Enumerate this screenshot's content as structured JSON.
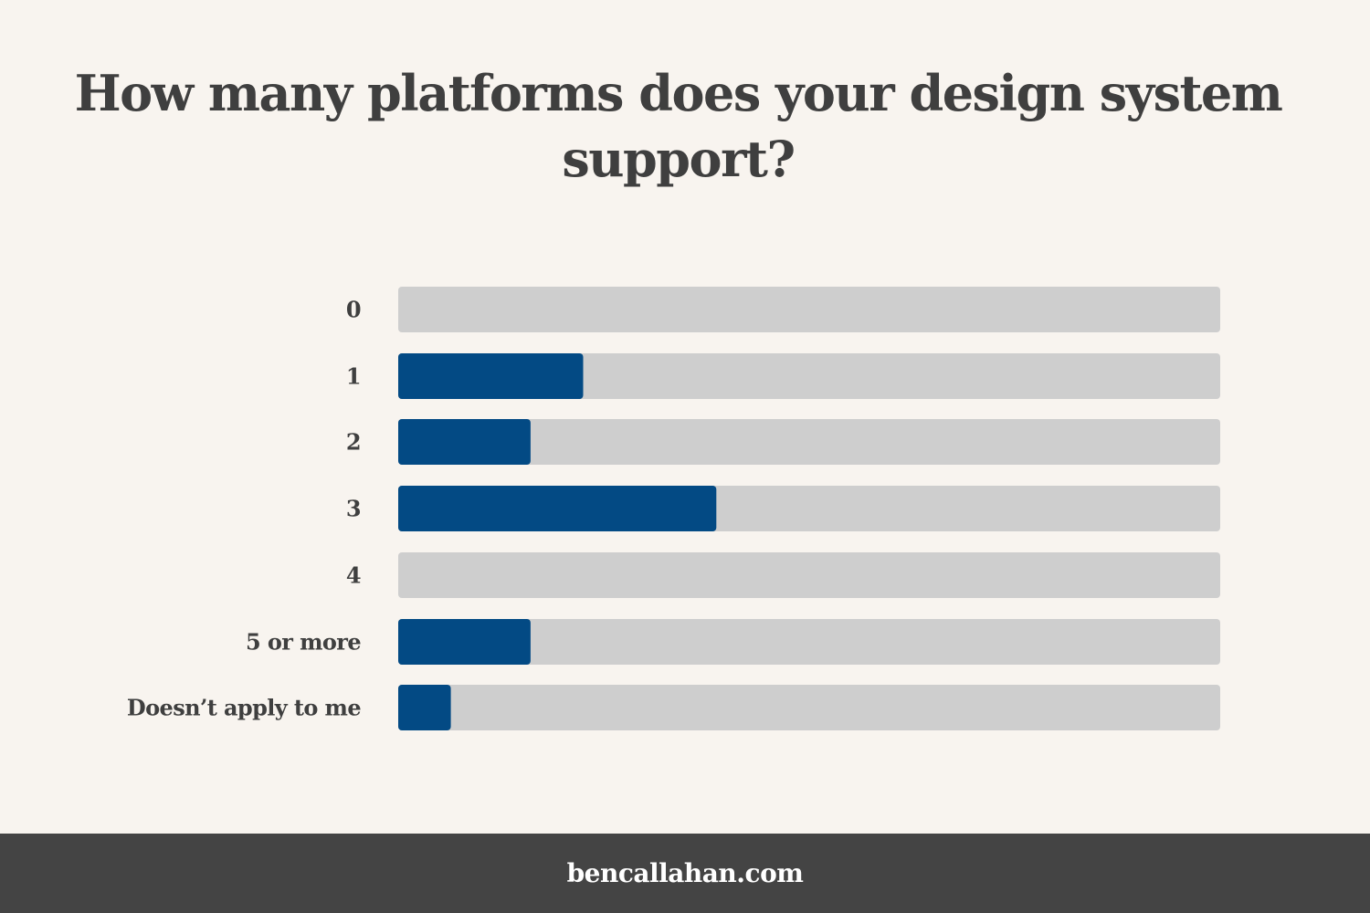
{
  "colors": {
    "background": "#f8f4ef",
    "track": "#cecece",
    "bar": "#034a84",
    "text": "#3f3f3f",
    "footer_background": "#444444",
    "footer_text": "#ffffff"
  },
  "footer": {
    "text": "bencallahan.com"
  },
  "chart_data": {
    "type": "bar",
    "orientation": "horizontal",
    "title": "How many platforms does your design system support?",
    "xlabel": "",
    "ylabel": "",
    "categories": [
      "0",
      "1",
      "2",
      "3",
      "4",
      "5 or more",
      "Doesn’t apply to me"
    ],
    "values": [
      0,
      22.5,
      16.1,
      38.7,
      0,
      16.1,
      6.4
    ],
    "xlim": [
      0,
      100
    ],
    "grid": false,
    "legend": "none",
    "value_labels": false
  }
}
